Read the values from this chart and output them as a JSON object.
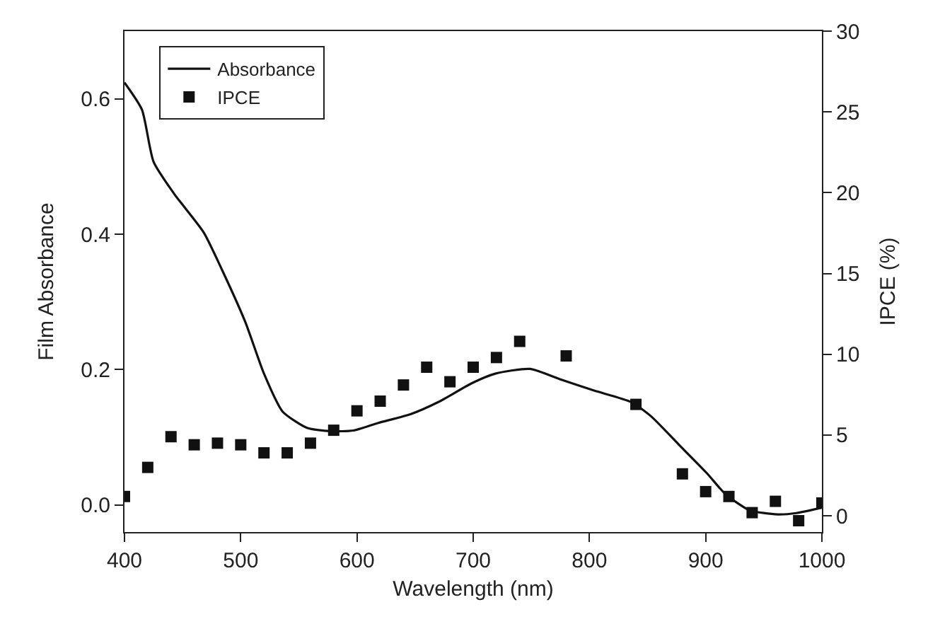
{
  "chart_data": {
    "type": "line",
    "xlabel": "Wavelength (nm)",
    "ylabel": "Film Absorbance",
    "y2label": "IPCE (%)",
    "xlim": [
      400,
      1000
    ],
    "xticks": [
      400,
      500,
      600,
      700,
      800,
      900,
      1000
    ],
    "ylim": [
      -0.04,
      0.7
    ],
    "yticks": [
      {
        "value": 0,
        "label": "0.0"
      },
      {
        "value": 0.2,
        "label": "0.2"
      },
      {
        "value": 0.4,
        "label": "0.4"
      },
      {
        "value": 0.6,
        "label": "0.6"
      }
    ],
    "y2lim": [
      -1,
      30
    ],
    "y2ticks": [
      0,
      5,
      10,
      15,
      20,
      25,
      30
    ],
    "legend": "top left",
    "series": [
      {
        "name": "Absorbance",
        "color": "#111111",
        "line_style": "solid",
        "marker": "none",
        "x": [
          400,
          415,
          425,
          443,
          468,
          484,
          504,
          520,
          536,
          557,
          577,
          597,
          618,
          646,
          670,
          699,
          719,
          749,
          776,
          804,
          836,
          853,
          877,
          901,
          917,
          938,
          962,
          978,
          1000
        ],
        "values": [
          0.624,
          0.584,
          0.507,
          0.459,
          0.403,
          0.347,
          0.27,
          0.194,
          0.138,
          0.114,
          0.109,
          0.11,
          0.121,
          0.134,
          0.152,
          0.18,
          0.194,
          0.201,
          0.185,
          0.169,
          0.152,
          0.131,
          0.089,
          0.047,
          0.016,
          -0.008,
          -0.014,
          -0.012,
          -0.004
        ]
      },
      {
        "name": "IPCE",
        "type": "scatter",
        "axis": "y2",
        "color": "#111111",
        "marker": "square",
        "x": [
          400,
          420,
          440,
          460,
          480,
          500,
          520,
          540,
          560,
          580,
          600,
          620,
          640,
          660,
          680,
          700,
          720,
          740,
          780,
          840,
          880,
          900,
          920,
          940,
          960,
          980,
          1000
        ],
        "values": [
          1.2,
          3.0,
          4.9,
          4.4,
          4.5,
          4.4,
          3.9,
          3.9,
          4.5,
          5.3,
          6.5,
          7.1,
          8.1,
          9.2,
          8.3,
          9.2,
          9.8,
          10.8,
          9.9,
          6.9,
          2.6,
          1.5,
          1.2,
          0.2,
          0.9,
          -0.3,
          0.8
        ]
      }
    ]
  }
}
